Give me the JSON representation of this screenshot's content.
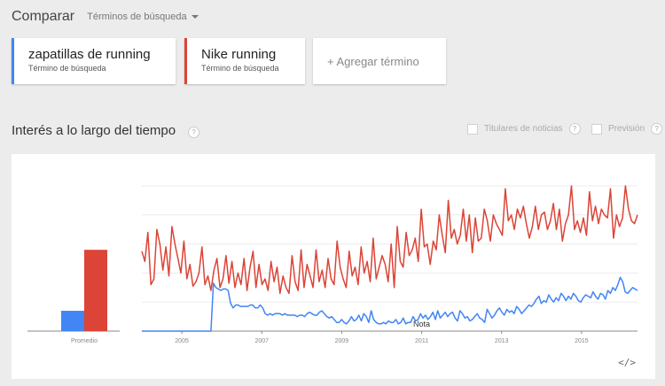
{
  "header": {
    "title": "Comparar",
    "terms_dropdown": "Términos de búsqueda"
  },
  "terms": [
    {
      "name": "zapatillas de running",
      "subtitle": "Término de búsqueda",
      "color": "#4285f4"
    },
    {
      "name": "Nike running",
      "subtitle": "Término de búsqueda",
      "color": "#db4437"
    }
  ],
  "add_term": {
    "label": "+ Agregar término"
  },
  "section": {
    "title": "Interés a lo largo del tiempo",
    "help_icon": "?",
    "options": [
      {
        "label": "Titulares de noticias"
      },
      {
        "label": "Previsión"
      }
    ]
  },
  "chart_data": {
    "type": "line",
    "average_bars": {
      "label": "Promedio",
      "values": [
        14,
        56
      ]
    },
    "x_tick_labels": [
      "2005",
      "2007",
      "2009",
      "2011",
      "2013",
      "2015"
    ],
    "x_range": [
      2004.0,
      2016.4
    ],
    "ylim": [
      0,
      100
    ],
    "gridlines": true,
    "annotation": "Nota",
    "series": [
      {
        "name": "Nike running",
        "color": "#db4437",
        "values": [
          55,
          48,
          68,
          32,
          36,
          70,
          60,
          42,
          58,
          38,
          72,
          60,
          50,
          40,
          62,
          36,
          46,
          31,
          34,
          40,
          58,
          32,
          38,
          28,
          42,
          50,
          30,
          36,
          52,
          33,
          48,
          30,
          40,
          32,
          50,
          28,
          44,
          55,
          30,
          46,
          32,
          36,
          28,
          48,
          34,
          44,
          26,
          38,
          30,
          26,
          52,
          34,
          28,
          56,
          30,
          46,
          38,
          30,
          56,
          34,
          42,
          30,
          50,
          36,
          32,
          62,
          44,
          36,
          30,
          55,
          38,
          44,
          32,
          58,
          40,
          48,
          34,
          64,
          36,
          44,
          52,
          46,
          34,
          60,
          30,
          72,
          48,
          44,
          68,
          52,
          56,
          64,
          48,
          84,
          58,
          60,
          46,
          62,
          56,
          80,
          66,
          54,
          90,
          64,
          70,
          60,
          66,
          84,
          62,
          80,
          54,
          78,
          62,
          64,
          84,
          76,
          62,
          80,
          74,
          70,
          66,
          98,
          76,
          80,
          70,
          84,
          78,
          86,
          74,
          64,
          72,
          86,
          70,
          80,
          82,
          70,
          76,
          88,
          70,
          84,
          62,
          74,
          80,
          100,
          70,
          76,
          68,
          78,
          66,
          96,
          76,
          86,
          74,
          84,
          80,
          78,
          98,
          64,
          80,
          72,
          78,
          100,
          84,
          76,
          74,
          80
        ]
      },
      {
        "name": "zapatillas de running",
        "color": "#4285f4",
        "values": [
          0,
          0,
          0,
          0,
          0,
          0,
          0,
          0,
          0,
          0,
          0,
          0,
          0,
          0,
          0,
          0,
          0,
          0,
          0,
          0,
          0,
          0,
          0,
          0,
          0,
          0,
          0,
          0,
          0,
          33,
          30,
          29,
          28,
          29,
          29,
          28,
          19,
          16,
          18,
          18,
          17,
          17,
          17,
          17,
          18,
          18,
          16,
          16,
          18,
          16,
          12,
          11,
          12,
          11,
          12,
          12,
          12,
          11,
          12,
          11,
          11,
          11,
          11,
          10,
          11,
          11,
          10,
          12,
          13,
          12,
          11,
          11,
          13,
          14,
          12,
          10,
          9,
          10,
          8,
          6,
          6,
          8,
          6,
          5,
          7,
          10,
          7,
          8,
          11,
          7,
          12,
          10,
          6,
          14,
          8,
          6,
          5,
          5,
          6,
          5,
          7,
          6,
          6,
          8,
          5,
          6,
          9,
          5,
          6,
          6,
          10,
          7,
          8,
          12,
          9,
          11,
          8,
          10,
          13,
          8,
          14,
          9,
          11,
          13,
          10,
          12,
          13,
          9,
          7,
          14,
          12,
          9,
          10,
          7,
          8,
          10,
          12,
          9,
          8,
          6,
          15,
          12,
          9,
          11,
          14,
          16,
          13,
          11,
          15,
          13,
          14,
          12,
          17,
          15,
          12,
          14,
          16,
          18,
          17,
          19,
          22,
          24,
          19,
          21,
          20,
          25,
          22,
          20,
          23,
          21,
          26,
          24,
          21,
          24,
          22,
          26,
          24,
          21,
          20,
          23,
          25,
          24,
          23,
          27,
          24,
          22,
          26,
          25,
          22,
          28,
          26,
          30,
          28,
          32,
          37,
          34,
          27,
          26,
          28,
          30,
          29,
          28
        ]
      }
    ]
  }
}
